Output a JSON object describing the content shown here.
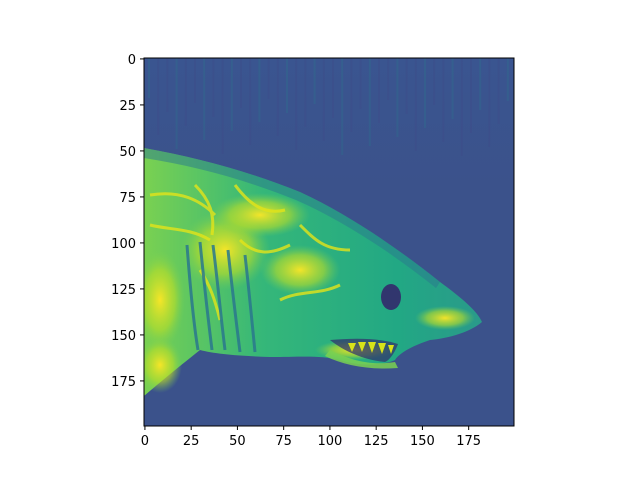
{
  "chart_data": {
    "type": "heatmap",
    "subject": "viridis-colormapped grayscale photo of a shark's head, facing right",
    "colormap": "viridis",
    "title": "",
    "xlabel": "",
    "ylabel": "",
    "xlim": [
      0,
      199
    ],
    "ylim": [
      199,
      0
    ],
    "x_ticks": [
      0,
      25,
      50,
      75,
      100,
      125,
      150,
      175
    ],
    "y_ticks": [
      0,
      25,
      50,
      75,
      100,
      125,
      150,
      175
    ],
    "image_size": [
      200,
      200
    ],
    "grid": false,
    "legend": "none",
    "colors": {
      "background_low": "#3b528b",
      "shark_body": "#21918c",
      "shark_highlight": "#bddf26",
      "shark_peak": "#fde725",
      "shark_shadow": "#2a788e",
      "eye_dark": "#31366e"
    }
  }
}
